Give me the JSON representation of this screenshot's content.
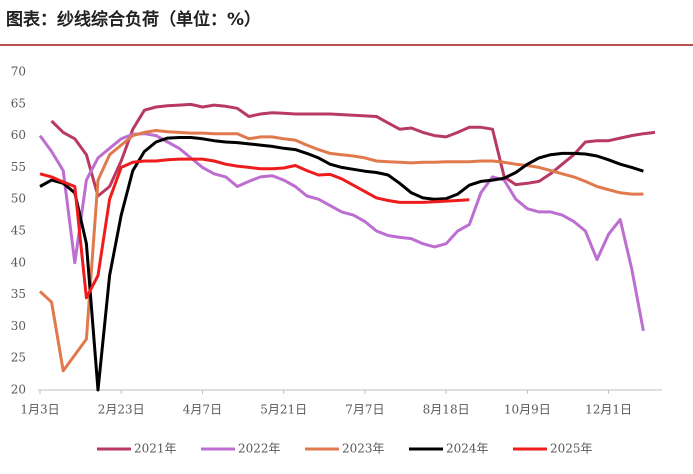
{
  "chart_data": {
    "type": "line",
    "title": "图表：纱线综合负荷（单位：%）",
    "categories": [
      "1月3日",
      null,
      null,
      null,
      null,
      null,
      null,
      "2月23日",
      null,
      null,
      null,
      null,
      null,
      null,
      "4月7日",
      null,
      null,
      null,
      null,
      null,
      null,
      "5月21日",
      null,
      null,
      null,
      null,
      null,
      null,
      "7月7日",
      null,
      null,
      null,
      null,
      null,
      null,
      "8月18日",
      null,
      null,
      null,
      null,
      null,
      null,
      "10月9日",
      null,
      null,
      null,
      null,
      null,
      null,
      "12月1日",
      null,
      null,
      null,
      null
    ],
    "ylim": [
      20,
      70
    ],
    "yticks": [
      20,
      25,
      30,
      35,
      40,
      45,
      50,
      55,
      60,
      65,
      70
    ],
    "grid": false,
    "legend": "bottom",
    "series": [
      {
        "name": "2021年",
        "color": "#b83a63",
        "values": [
          null,
          62.3,
          60.5,
          59.5,
          57,
          50.5,
          52,
          56,
          61,
          64,
          64.5,
          64.7,
          64.8,
          64.9,
          64.5,
          64.8,
          64.6,
          64.3,
          63,
          63.4,
          63.6,
          63.5,
          63.4,
          63.4,
          63.4,
          63.4,
          63.3,
          63.2,
          63.1,
          63,
          62,
          61,
          61.2,
          60.5,
          60,
          59.8,
          60.5,
          61.3,
          61.3,
          61,
          53.5,
          52.3,
          52.5,
          52.8,
          54,
          55.5,
          57,
          59,
          59.2,
          59.2,
          59.6,
          60,
          60.3,
          60.5
        ]
      },
      {
        "name": "2022年",
        "color": "#bd6fd1",
        "values": [
          60,
          57.5,
          54.5,
          40,
          53,
          56.5,
          58,
          59.5,
          60.2,
          60.3,
          60,
          59,
          58,
          56.5,
          55,
          54,
          53.5,
          52,
          52.8,
          53.5,
          53.7,
          53,
          52,
          50.5,
          50,
          49,
          48,
          47.5,
          46.5,
          45,
          44.3,
          44,
          43.8,
          43,
          42.5,
          43,
          45,
          46,
          51,
          53.5,
          53,
          50,
          48.5,
          48,
          48,
          47.5,
          46.5,
          45,
          40.5,
          44.5,
          46.8,
          39,
          29.3,
          null
        ]
      },
      {
        "name": "2023年",
        "color": "#e07a4c",
        "values": [
          35.5,
          33.8,
          23,
          25.5,
          28,
          53,
          57,
          58.5,
          60,
          60.5,
          60.8,
          60.6,
          60.5,
          60.4,
          60.4,
          60.3,
          60.3,
          60.3,
          59.5,
          59.8,
          59.8,
          59.5,
          59.3,
          58.5,
          57.8,
          57.2,
          57,
          56.8,
          56.5,
          56,
          55.9,
          55.8,
          55.7,
          55.8,
          55.8,
          55.9,
          55.9,
          55.9,
          56,
          56,
          55.8,
          55.5,
          55.3,
          55,
          54.5,
          54,
          53.5,
          52.8,
          52,
          51.5,
          51,
          50.8,
          50.8,
          null
        ]
      },
      {
        "name": "2024年",
        "color": "#000000",
        "values": [
          52,
          53,
          52.5,
          51,
          43,
          20,
          38,
          47.5,
          54.5,
          57.5,
          59,
          59.6,
          59.7,
          59.7,
          59.5,
          59.2,
          59,
          58.9,
          58.7,
          58.5,
          58.3,
          58,
          57.8,
          57.2,
          56.5,
          55.5,
          55,
          54.7,
          54.4,
          54.2,
          53.8,
          52.5,
          51,
          50.2,
          50,
          50.1,
          50.8,
          52.2,
          52.8,
          53,
          53.3,
          54.2,
          55.5,
          56.5,
          57,
          57.2,
          57.2,
          57.1,
          56.8,
          56.2,
          55.5,
          55,
          54.4,
          null
        ]
      },
      {
        "name": "2025年",
        "color": "#ee1c1c",
        "values": [
          54,
          53.5,
          52.7,
          52,
          34.5,
          38,
          50,
          55,
          55.8,
          56,
          56,
          56.2,
          56.3,
          56.3,
          56.3,
          56,
          55.5,
          55.2,
          55,
          54.8,
          54.8,
          54.9,
          55.3,
          54.5,
          53.8,
          53.9,
          53.2,
          52.2,
          51.2,
          50.2,
          49.8,
          49.5,
          49.5,
          49.5,
          49.6,
          49.7,
          49.8,
          49.9,
          null,
          null,
          null,
          null,
          null,
          null,
          null,
          null,
          null,
          null,
          null,
          null,
          null,
          null,
          null,
          null
        ]
      }
    ]
  }
}
